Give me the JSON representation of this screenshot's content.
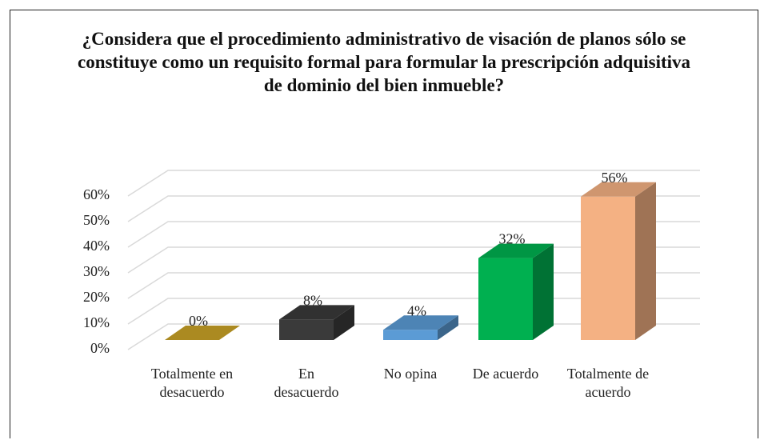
{
  "chart_data": {
    "type": "bar3d",
    "title": "¿Considera que el procedimiento administrativo de visación de planos sólo se constituye como un requisito formal para formular la prescripción adquisitiva de dominio del bien inmueble?",
    "categories": [
      "Totalmente en desacuerdo",
      "En desacuerdo",
      "No opina",
      "De acuerdo",
      "Totalmente de acuerdo"
    ],
    "values": [
      0,
      8,
      4,
      32,
      56
    ],
    "value_labels": [
      "0%",
      "8%",
      "4%",
      "32%",
      "56%"
    ],
    "colors": [
      "#c9a227",
      "#3a3a3a",
      "#5b9bd5",
      "#00b050",
      "#f4b183"
    ],
    "ylim": [
      0,
      60
    ],
    "yticks": [
      {
        "value": 0,
        "label": "0%"
      },
      {
        "value": 10,
        "label": "10%"
      },
      {
        "value": 20,
        "label": "20%"
      },
      {
        "value": 30,
        "label": "30%"
      },
      {
        "value": 40,
        "label": "40%"
      },
      {
        "value": 50,
        "label": "50%"
      },
      {
        "value": 60,
        "label": "60%"
      }
    ],
    "grid": true
  }
}
